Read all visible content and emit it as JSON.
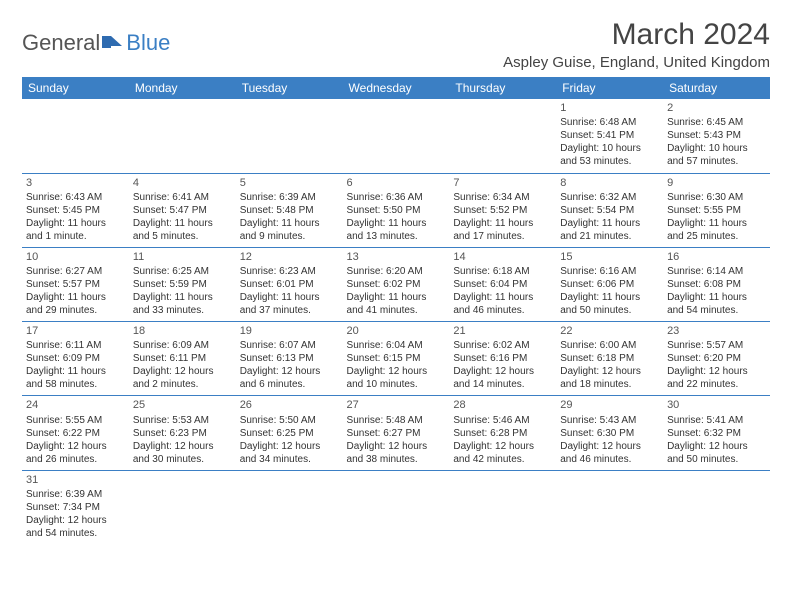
{
  "logo": {
    "text1": "General",
    "text2": "Blue"
  },
  "title": "March 2024",
  "location": "Aspley Guise, England, United Kingdom",
  "colors": {
    "headerBg": "#3b7fc4",
    "headerText": "#ffffff",
    "border": "#3b7fc4"
  },
  "weekdays": [
    "Sunday",
    "Monday",
    "Tuesday",
    "Wednesday",
    "Thursday",
    "Friday",
    "Saturday"
  ],
  "weeks": [
    [
      null,
      null,
      null,
      null,
      null,
      {
        "n": "1",
        "sr": "Sunrise: 6:48 AM",
        "ss": "Sunset: 5:41 PM",
        "dl": "Daylight: 10 hours and 53 minutes."
      },
      {
        "n": "2",
        "sr": "Sunrise: 6:45 AM",
        "ss": "Sunset: 5:43 PM",
        "dl": "Daylight: 10 hours and 57 minutes."
      }
    ],
    [
      {
        "n": "3",
        "sr": "Sunrise: 6:43 AM",
        "ss": "Sunset: 5:45 PM",
        "dl": "Daylight: 11 hours and 1 minute."
      },
      {
        "n": "4",
        "sr": "Sunrise: 6:41 AM",
        "ss": "Sunset: 5:47 PM",
        "dl": "Daylight: 11 hours and 5 minutes."
      },
      {
        "n": "5",
        "sr": "Sunrise: 6:39 AM",
        "ss": "Sunset: 5:48 PM",
        "dl": "Daylight: 11 hours and 9 minutes."
      },
      {
        "n": "6",
        "sr": "Sunrise: 6:36 AM",
        "ss": "Sunset: 5:50 PM",
        "dl": "Daylight: 11 hours and 13 minutes."
      },
      {
        "n": "7",
        "sr": "Sunrise: 6:34 AM",
        "ss": "Sunset: 5:52 PM",
        "dl": "Daylight: 11 hours and 17 minutes."
      },
      {
        "n": "8",
        "sr": "Sunrise: 6:32 AM",
        "ss": "Sunset: 5:54 PM",
        "dl": "Daylight: 11 hours and 21 minutes."
      },
      {
        "n": "9",
        "sr": "Sunrise: 6:30 AM",
        "ss": "Sunset: 5:55 PM",
        "dl": "Daylight: 11 hours and 25 minutes."
      }
    ],
    [
      {
        "n": "10",
        "sr": "Sunrise: 6:27 AM",
        "ss": "Sunset: 5:57 PM",
        "dl": "Daylight: 11 hours and 29 minutes."
      },
      {
        "n": "11",
        "sr": "Sunrise: 6:25 AM",
        "ss": "Sunset: 5:59 PM",
        "dl": "Daylight: 11 hours and 33 minutes."
      },
      {
        "n": "12",
        "sr": "Sunrise: 6:23 AM",
        "ss": "Sunset: 6:01 PM",
        "dl": "Daylight: 11 hours and 37 minutes."
      },
      {
        "n": "13",
        "sr": "Sunrise: 6:20 AM",
        "ss": "Sunset: 6:02 PM",
        "dl": "Daylight: 11 hours and 41 minutes."
      },
      {
        "n": "14",
        "sr": "Sunrise: 6:18 AM",
        "ss": "Sunset: 6:04 PM",
        "dl": "Daylight: 11 hours and 46 minutes."
      },
      {
        "n": "15",
        "sr": "Sunrise: 6:16 AM",
        "ss": "Sunset: 6:06 PM",
        "dl": "Daylight: 11 hours and 50 minutes."
      },
      {
        "n": "16",
        "sr": "Sunrise: 6:14 AM",
        "ss": "Sunset: 6:08 PM",
        "dl": "Daylight: 11 hours and 54 minutes."
      }
    ],
    [
      {
        "n": "17",
        "sr": "Sunrise: 6:11 AM",
        "ss": "Sunset: 6:09 PM",
        "dl": "Daylight: 11 hours and 58 minutes."
      },
      {
        "n": "18",
        "sr": "Sunrise: 6:09 AM",
        "ss": "Sunset: 6:11 PM",
        "dl": "Daylight: 12 hours and 2 minutes."
      },
      {
        "n": "19",
        "sr": "Sunrise: 6:07 AM",
        "ss": "Sunset: 6:13 PM",
        "dl": "Daylight: 12 hours and 6 minutes."
      },
      {
        "n": "20",
        "sr": "Sunrise: 6:04 AM",
        "ss": "Sunset: 6:15 PM",
        "dl": "Daylight: 12 hours and 10 minutes."
      },
      {
        "n": "21",
        "sr": "Sunrise: 6:02 AM",
        "ss": "Sunset: 6:16 PM",
        "dl": "Daylight: 12 hours and 14 minutes."
      },
      {
        "n": "22",
        "sr": "Sunrise: 6:00 AM",
        "ss": "Sunset: 6:18 PM",
        "dl": "Daylight: 12 hours and 18 minutes."
      },
      {
        "n": "23",
        "sr": "Sunrise: 5:57 AM",
        "ss": "Sunset: 6:20 PM",
        "dl": "Daylight: 12 hours and 22 minutes."
      }
    ],
    [
      {
        "n": "24",
        "sr": "Sunrise: 5:55 AM",
        "ss": "Sunset: 6:22 PM",
        "dl": "Daylight: 12 hours and 26 minutes."
      },
      {
        "n": "25",
        "sr": "Sunrise: 5:53 AM",
        "ss": "Sunset: 6:23 PM",
        "dl": "Daylight: 12 hours and 30 minutes."
      },
      {
        "n": "26",
        "sr": "Sunrise: 5:50 AM",
        "ss": "Sunset: 6:25 PM",
        "dl": "Daylight: 12 hours and 34 minutes."
      },
      {
        "n": "27",
        "sr": "Sunrise: 5:48 AM",
        "ss": "Sunset: 6:27 PM",
        "dl": "Daylight: 12 hours and 38 minutes."
      },
      {
        "n": "28",
        "sr": "Sunrise: 5:46 AM",
        "ss": "Sunset: 6:28 PM",
        "dl": "Daylight: 12 hours and 42 minutes."
      },
      {
        "n": "29",
        "sr": "Sunrise: 5:43 AM",
        "ss": "Sunset: 6:30 PM",
        "dl": "Daylight: 12 hours and 46 minutes."
      },
      {
        "n": "30",
        "sr": "Sunrise: 5:41 AM",
        "ss": "Sunset: 6:32 PM",
        "dl": "Daylight: 12 hours and 50 minutes."
      }
    ],
    [
      {
        "n": "31",
        "sr": "Sunrise: 6:39 AM",
        "ss": "Sunset: 7:34 PM",
        "dl": "Daylight: 12 hours and 54 minutes."
      },
      null,
      null,
      null,
      null,
      null,
      null
    ]
  ]
}
